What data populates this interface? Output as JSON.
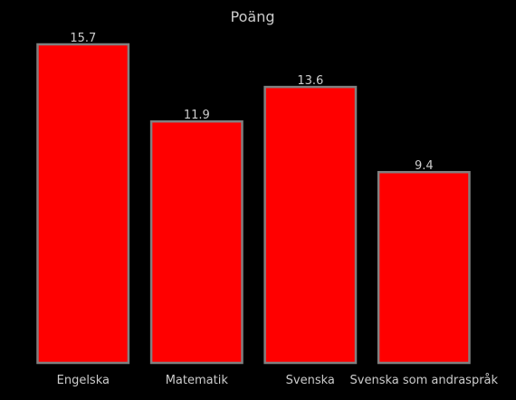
{
  "chart_data": {
    "type": "bar",
    "title": "Poäng",
    "xlabel": "",
    "ylabel": "",
    "categories": [
      "Engelska",
      "Matematik",
      "Svenska",
      "Svenska som andraspråk"
    ],
    "values": [
      15.7,
      11.9,
      13.6,
      9.4
    ],
    "value_labels": [
      "15.7",
      "11.9",
      "13.6",
      "9.4"
    ],
    "ylim": [
      0,
      15.7
    ],
    "grid": false,
    "legend": "none",
    "y_axis_visible": false
  },
  "colors": {
    "background": "#000000",
    "bar_fill": "#ff0000",
    "bar_edge": "#808080",
    "text": "#cccccc"
  }
}
